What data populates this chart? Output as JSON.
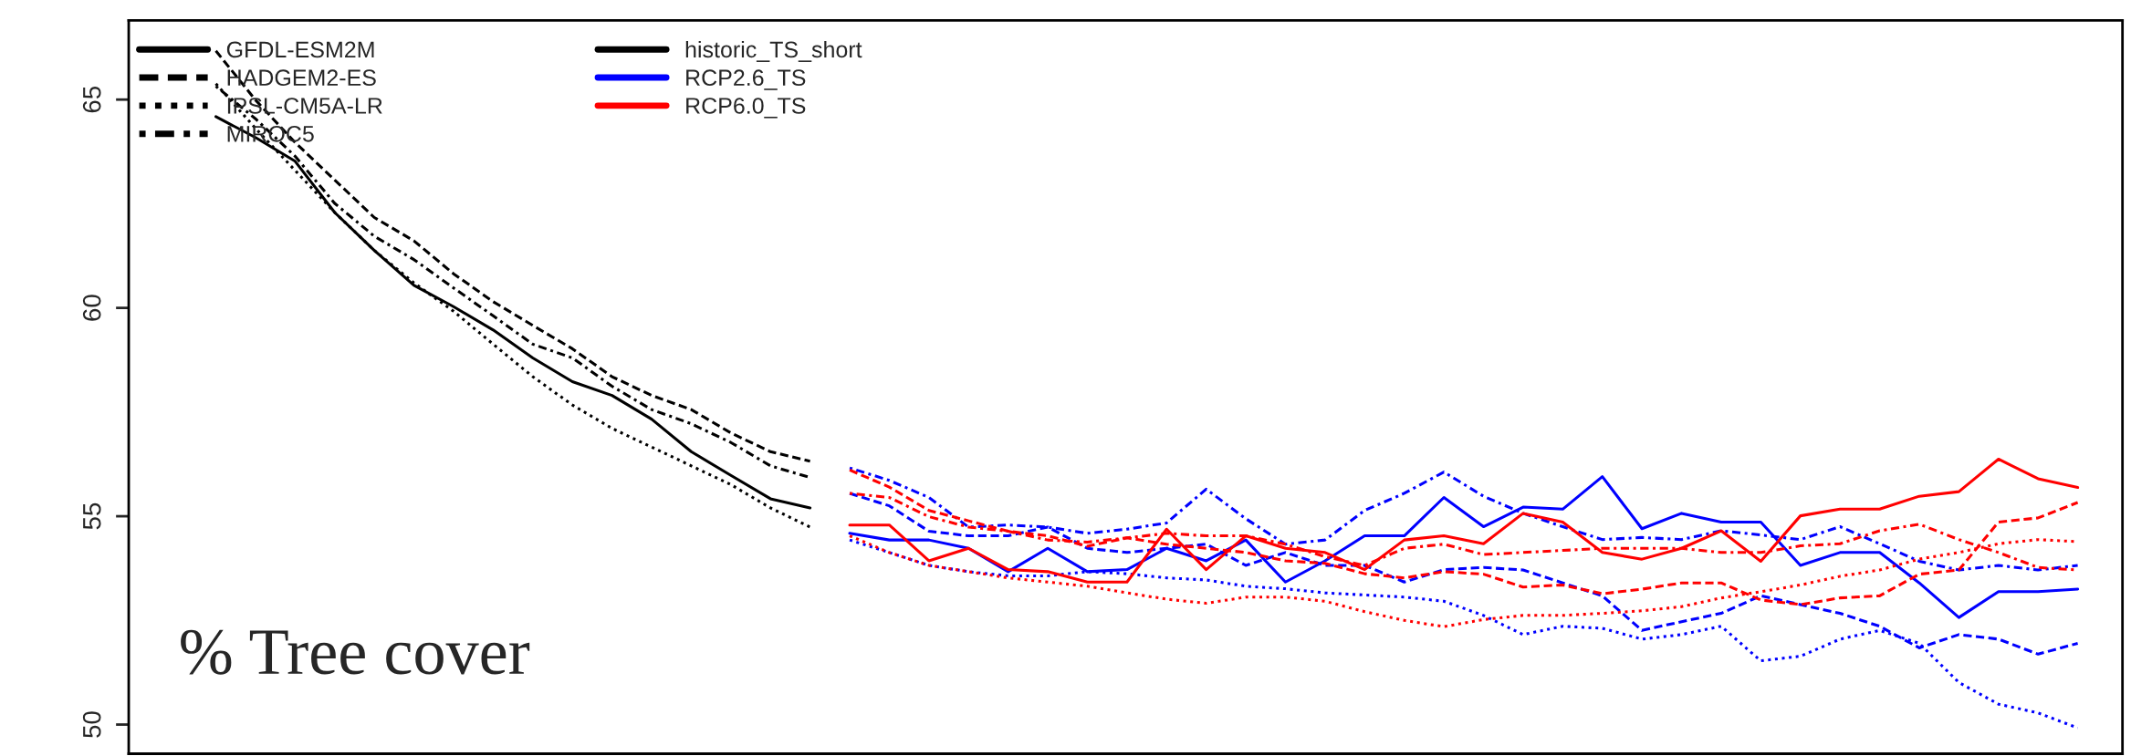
{
  "chart_data": {
    "type": "line",
    "categories": [
      null,
      null,
      null,
      null,
      null,
      null,
      null,
      null,
      null,
      null,
      null,
      null,
      null,
      null,
      null,
      null,
      null,
      null,
      null,
      null,
      null,
      null,
      null,
      null,
      null,
      null,
      null,
      null,
      null,
      null,
      null,
      null,
      null,
      null,
      null,
      null,
      null,
      null,
      null,
      null,
      null,
      null,
      null,
      null,
      null,
      null,
      null,
      null
    ],
    "ylim": [
      49.3,
      66.9
    ],
    "yticks": [
      50,
      55,
      60,
      65
    ],
    "tick_labels": "y",
    "grid": false,
    "legend": "top left",
    "annotations": [
      "% Tree cover",
      "historic_TS_short"
    ],
    "series": [
      {
        "name": "GFDL-ESM2M",
        "color": "#000000",
        "line_style": "solid",
        "values": [
          64.59,
          64.09,
          63.52,
          62.29,
          61.38,
          60.54,
          60.03,
          59.47,
          58.8,
          58.23,
          57.9,
          57.33,
          56.55,
          55.98,
          55.42,
          55.2,
          null,
          null,
          null,
          null,
          null,
          null,
          null,
          null,
          null,
          null,
          null,
          null,
          null,
          null,
          null,
          null,
          null,
          null,
          null,
          null,
          null,
          null,
          null,
          null,
          null,
          null,
          null,
          null,
          null,
          null,
          null,
          null
        ]
      },
      {
        "name": "HADGEM2-ES",
        "color": "#000000",
        "line_style": "dashed",
        "values": [
          66.17,
          64.99,
          63.97,
          63.07,
          62.17,
          61.61,
          60.82,
          60.15,
          59.58,
          59.02,
          58.35,
          57.9,
          57.56,
          57.0,
          56.55,
          56.32,
          null,
          null,
          null,
          null,
          null,
          null,
          null,
          null,
          null,
          null,
          null,
          null,
          null,
          null,
          null,
          null,
          null,
          null,
          null,
          null,
          null,
          null,
          null,
          null,
          null,
          null,
          null,
          null,
          null,
          null,
          null,
          null
        ]
      },
      {
        "name": "IPSL-CM5A-LR",
        "color": "#000000",
        "line_style": "dotted",
        "values": [
          65.38,
          64.31,
          63.3,
          62.29,
          61.38,
          60.6,
          59.92,
          59.13,
          58.35,
          57.67,
          57.11,
          56.66,
          56.21,
          55.76,
          55.2,
          54.74,
          null,
          null,
          null,
          null,
          null,
          null,
          null,
          null,
          null,
          null,
          null,
          null,
          null,
          null,
          null,
          null,
          null,
          null,
          null,
          null,
          null,
          null,
          null,
          null,
          null,
          null,
          null,
          null,
          null,
          null,
          null,
          null
        ]
      },
      {
        "name": "MIROC5",
        "color": "#000000",
        "line_style": "dashdot",
        "values": [
          65.32,
          64.54,
          63.64,
          62.51,
          61.72,
          61.16,
          60.48,
          59.81,
          59.13,
          58.8,
          58.12,
          57.56,
          57.22,
          56.77,
          56.21,
          55.93,
          null,
          null,
          null,
          null,
          null,
          null,
          null,
          null,
          null,
          null,
          null,
          null,
          null,
          null,
          null,
          null,
          null,
          null,
          null,
          null,
          null,
          null,
          null,
          null,
          null,
          null,
          null,
          null,
          null,
          null,
          null,
          null
        ]
      },
      {
        "name": "RCP2.6_TS",
        "color": "#0000ff",
        "line_style": "solid",
        "values": [
          null,
          null,
          null,
          null,
          null,
          null,
          null,
          null,
          null,
          null,
          null,
          null,
          null,
          null,
          null,
          null,
          54.59,
          54.43,
          54.43,
          54.23,
          53.67,
          54.23,
          53.67,
          53.72,
          54.23,
          53.93,
          54.43,
          53.42,
          53.93,
          54.53,
          54.53,
          55.45,
          54.75,
          55.22,
          55.17,
          55.95,
          54.7,
          55.07,
          54.86,
          54.86,
          53.82,
          54.13,
          54.13,
          53.4,
          52.57,
          53.19,
          53.19,
          53.25
        ]
      },
      {
        "color": "#0000ff",
        "line_style": "dashed",
        "values": [
          null,
          null,
          null,
          null,
          null,
          null,
          null,
          null,
          null,
          null,
          null,
          null,
          null,
          null,
          null,
          null,
          55.55,
          55.25,
          54.64,
          54.53,
          54.53,
          54.74,
          54.23,
          54.13,
          54.23,
          54.33,
          53.82,
          54.13,
          53.82,
          53.82,
          53.42,
          53.72,
          53.77,
          53.71,
          53.4,
          53.09,
          52.26,
          52.47,
          52.67,
          53.09,
          52.88,
          52.67,
          52.36,
          51.84,
          52.16,
          52.05,
          51.69,
          51.95
        ]
      },
      {
        "color": "#0000ff",
        "line_style": "dotted",
        "values": [
          null,
          null,
          null,
          null,
          null,
          null,
          null,
          null,
          null,
          null,
          null,
          null,
          null,
          null,
          null,
          null,
          54.43,
          54.13,
          53.82,
          53.67,
          53.57,
          53.57,
          53.67,
          53.62,
          53.52,
          53.47,
          53.32,
          53.26,
          53.16,
          53.11,
          53.06,
          52.96,
          52.62,
          52.16,
          52.36,
          52.31,
          52.05,
          52.16,
          52.36,
          51.53,
          51.64,
          52.05,
          52.26,
          51.95,
          51.01,
          50.49,
          50.28,
          49.92
        ]
      },
      {
        "color": "#0000ff",
        "line_style": "dashdot",
        "values": [
          null,
          null,
          null,
          null,
          null,
          null,
          null,
          null,
          null,
          null,
          null,
          null,
          null,
          null,
          null,
          null,
          56.16,
          55.86,
          55.45,
          54.74,
          54.79,
          54.74,
          54.59,
          54.69,
          54.84,
          55.65,
          54.94,
          54.33,
          54.43,
          55.14,
          55.55,
          56.06,
          55.48,
          55.07,
          54.75,
          54.44,
          54.49,
          54.44,
          54.65,
          54.55,
          54.44,
          54.75,
          54.34,
          53.92,
          53.71,
          53.82,
          53.71,
          53.82
        ]
      },
      {
        "name": "RCP6.0_TS",
        "color": "#ff0000",
        "line_style": "solid",
        "values": [
          null,
          null,
          null,
          null,
          null,
          null,
          null,
          null,
          null,
          null,
          null,
          null,
          null,
          null,
          null,
          null,
          54.79,
          54.79,
          53.93,
          54.23,
          53.72,
          53.67,
          53.42,
          53.42,
          54.69,
          53.72,
          54.53,
          54.23,
          54.13,
          53.72,
          54.43,
          54.53,
          54.34,
          55.07,
          54.86,
          54.13,
          53.97,
          54.23,
          54.65,
          53.92,
          55.01,
          55.17,
          55.17,
          55.48,
          55.59,
          56.37,
          55.9,
          55.69
        ]
      },
      {
        "color": "#ff0000",
        "line_style": "dashed",
        "values": [
          null,
          null,
          null,
          null,
          null,
          null,
          null,
          null,
          null,
          null,
          null,
          null,
          null,
          null,
          null,
          null,
          56.11,
          55.7,
          55.14,
          54.89,
          54.64,
          54.53,
          54.28,
          54.48,
          54.33,
          54.23,
          54.13,
          53.93,
          53.87,
          53.62,
          53.52,
          53.67,
          53.61,
          53.3,
          53.35,
          53.14,
          53.25,
          53.4,
          53.4,
          52.99,
          52.88,
          53.04,
          53.09,
          53.61,
          53.71,
          54.86,
          54.96,
          55.33
        ]
      },
      {
        "color": "#ff0000",
        "line_style": "dotted",
        "values": [
          null,
          null,
          null,
          null,
          null,
          null,
          null,
          null,
          null,
          null,
          null,
          null,
          null,
          null,
          null,
          null,
          54.53,
          54.13,
          53.82,
          53.67,
          53.52,
          53.42,
          53.32,
          53.16,
          53.01,
          52.91,
          53.06,
          53.06,
          52.96,
          52.71,
          52.5,
          52.35,
          52.52,
          52.62,
          52.62,
          52.67,
          52.73,
          52.83,
          53.04,
          53.19,
          53.35,
          53.56,
          53.71,
          53.97,
          54.13,
          54.34,
          54.44,
          54.39
        ]
      },
      {
        "color": "#ff0000",
        "line_style": "dashdot",
        "values": [
          null,
          null,
          null,
          null,
          null,
          null,
          null,
          null,
          null,
          null,
          null,
          null,
          null,
          null,
          null,
          null,
          55.55,
          55.45,
          54.99,
          54.74,
          54.64,
          54.43,
          54.38,
          54.48,
          54.59,
          54.53,
          54.53,
          54.33,
          54.03,
          53.82,
          54.23,
          54.33,
          54.08,
          54.13,
          54.18,
          54.23,
          54.23,
          54.23,
          54.13,
          54.13,
          54.29,
          54.34,
          54.65,
          54.81,
          54.44,
          54.13,
          53.77,
          53.71
        ]
      }
    ]
  }
}
